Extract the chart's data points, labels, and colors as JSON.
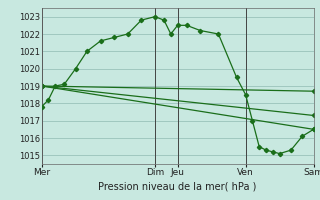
{
  "bg_color": "#c8e8e0",
  "grid_color": "#a0c8c0",
  "line_color": "#1a6e1a",
  "marker_color": "#1a6e1a",
  "title": "Pression niveau de la mer( hPa )",
  "ylabel_vals": [
    1015,
    1016,
    1017,
    1018,
    1019,
    1020,
    1021,
    1022,
    1023
  ],
  "xlim": [
    0,
    6.0
  ],
  "ylim": [
    1014.5,
    1023.5
  ],
  "xtick_pos": [
    0.0,
    2.5,
    3.0,
    4.5,
    6.0
  ],
  "xtick_labels": [
    "Mer",
    "Dim",
    "Jeu",
    "Ven",
    "Sam"
  ],
  "vlines_x": [
    0.0,
    2.5,
    3.0,
    4.5,
    6.0
  ],
  "series1_x": [
    0.0,
    0.15,
    0.3,
    0.5,
    0.75,
    1.0,
    1.3,
    1.6,
    1.9,
    2.2,
    2.5,
    2.7,
    2.85,
    3.0,
    3.2,
    3.5,
    3.9,
    4.3,
    4.5,
    4.65,
    4.8,
    4.95,
    5.1,
    5.25,
    5.5,
    5.75,
    6.0
  ],
  "series1_y": [
    1017.8,
    1018.2,
    1019.0,
    1019.1,
    1020.0,
    1021.0,
    1021.6,
    1021.8,
    1022.0,
    1022.8,
    1023.0,
    1022.8,
    1022.0,
    1022.5,
    1022.5,
    1022.2,
    1022.0,
    1019.5,
    1018.5,
    1017.0,
    1015.5,
    1015.3,
    1015.2,
    1015.1,
    1015.3,
    1016.1,
    1016.5
  ],
  "series2_x": [
    0.0,
    6.0
  ],
  "series2_y": [
    1019.0,
    1018.7
  ],
  "series3_x": [
    0.0,
    6.0
  ],
  "series3_y": [
    1019.0,
    1017.3
  ],
  "series4_x": [
    0.0,
    6.0
  ],
  "series4_y": [
    1019.0,
    1016.5
  ]
}
